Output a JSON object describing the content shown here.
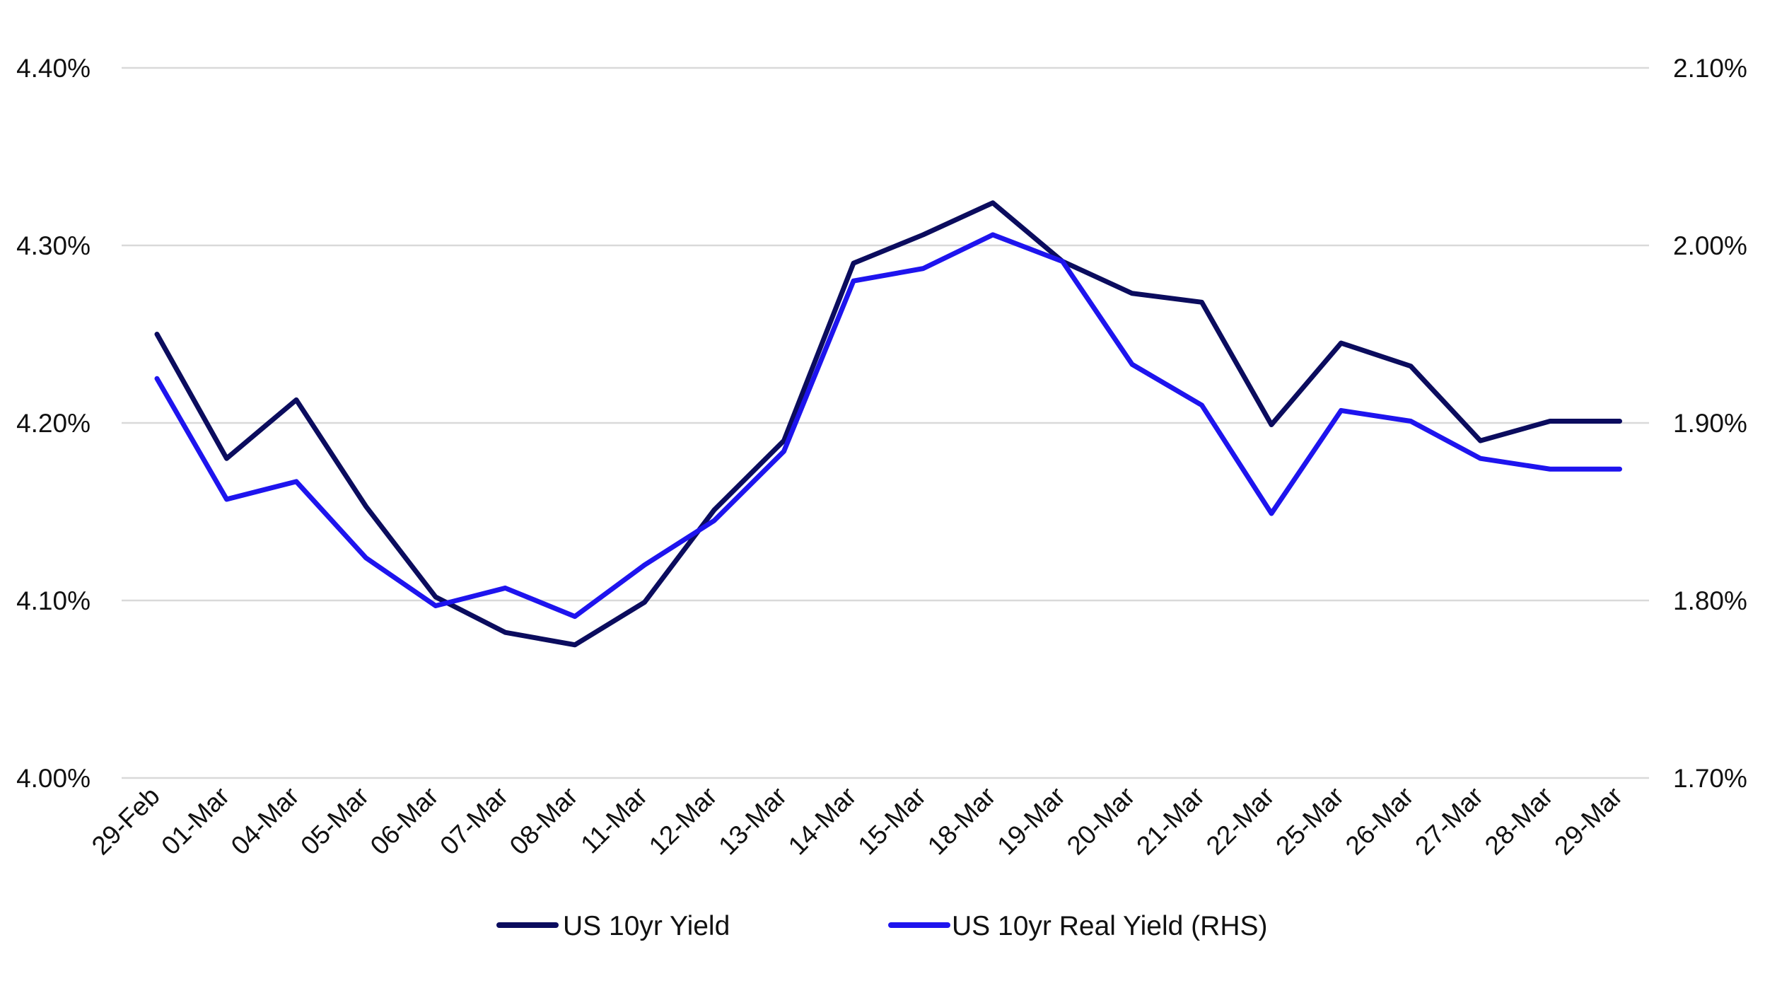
{
  "chart_data": {
    "type": "line",
    "title": "",
    "xlabel": "",
    "ylabel": "",
    "categories": [
      "29-Feb",
      "01-Mar",
      "04-Mar",
      "05-Mar",
      "06-Mar",
      "07-Mar",
      "08-Mar",
      "11-Mar",
      "12-Mar",
      "13-Mar",
      "14-Mar",
      "15-Mar",
      "18-Mar",
      "19-Mar",
      "20-Mar",
      "21-Mar",
      "22-Mar",
      "25-Mar",
      "26-Mar",
      "27-Mar",
      "28-Mar",
      "29-Mar"
    ],
    "y_left": {
      "range": [
        4.0,
        4.4
      ],
      "ticks": [
        4.0,
        4.1,
        4.2,
        4.3,
        4.4
      ],
      "tick_labels": [
        "4.00%",
        "4.10%",
        "4.20%",
        "4.30%",
        "4.40%"
      ]
    },
    "y_right": {
      "range": [
        1.7,
        2.1
      ],
      "ticks": [
        1.7,
        1.8,
        1.9,
        2.0,
        2.1
      ],
      "tick_labels": [
        "1.70%",
        "1.80%",
        "1.90%",
        "2.00%",
        "2.10%"
      ]
    },
    "grid": true,
    "legend_position": "bottom",
    "series": [
      {
        "name": "US 10yr Yield",
        "axis": "left",
        "color": "#0b0c5e",
        "values": [
          4.25,
          4.18,
          4.213,
          4.153,
          4.102,
          4.082,
          4.075,
          4.099,
          4.151,
          4.19,
          4.29,
          4.306,
          4.324,
          4.291,
          4.273,
          4.268,
          4.199,
          4.245,
          4.232,
          4.19,
          4.201,
          4.201
        ]
      },
      {
        "name": "US 10yr Real Yield (RHS)",
        "axis": "right",
        "color": "#1e14ee",
        "values": [
          1.925,
          1.857,
          1.867,
          1.824,
          1.797,
          1.807,
          1.791,
          1.82,
          1.845,
          1.884,
          1.98,
          1.987,
          2.006,
          1.991,
          1.933,
          1.91,
          1.849,
          1.907,
          1.901,
          1.88,
          1.874,
          1.874
        ]
      }
    ]
  }
}
